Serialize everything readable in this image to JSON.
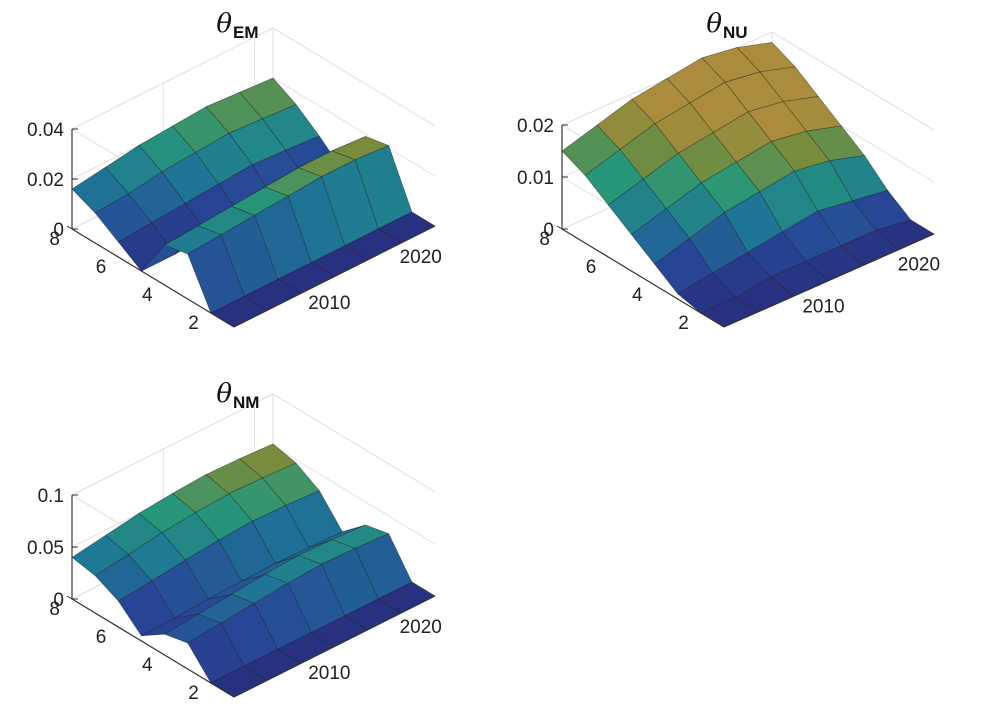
{
  "chart_data": [
    {
      "type": "surface",
      "title_symbol": "θ",
      "title_subscript": "EM",
      "zticks": [
        "0",
        "0.02",
        "0.04"
      ],
      "yticks": [
        "8",
        "6",
        "4",
        "2"
      ],
      "xticks": [
        "2010",
        "2020"
      ],
      "zlim": [
        0,
        0.04
      ],
      "ylim": [
        1,
        8
      ],
      "xlim": [
        2000,
        2022
      ],
      "grid": true,
      "rows": [
        {
          "maturity": 8,
          "values": [
            0.016,
            0.018,
            0.02,
            0.021,
            0.022,
            0.021,
            0.02
          ]
        },
        {
          "maturity": 7,
          "values": [
            0.012,
            0.013,
            0.015,
            0.016,
            0.017,
            0.016,
            0.015
          ]
        },
        {
          "maturity": 6,
          "values": [
            0.006,
            0.007,
            0.008,
            0.009,
            0.01,
            0.009,
            0.008
          ]
        },
        {
          "maturity": 5,
          "values": [
            0.0,
            0.0,
            0.001,
            0.001,
            0.001,
            0.001,
            0.0
          ]
        },
        {
          "maturity": 4,
          "values": [
            0.016,
            0.017,
            0.018,
            0.019,
            0.02,
            0.02,
            0.019
          ]
        },
        {
          "maturity": 3,
          "values": [
            0.018,
            0.019,
            0.02,
            0.021,
            0.022,
            0.022,
            0.021
          ]
        },
        {
          "maturity": 2,
          "values": [
            0.0,
            0.0,
            0.0,
            0.0,
            0.0,
            0.0,
            0.0
          ]
        },
        {
          "maturity": 1,
          "values": [
            0.0,
            0.0,
            0.0,
            0.0,
            0.0,
            0.0,
            0.0
          ]
        }
      ]
    },
    {
      "type": "surface",
      "title_symbol": "θ",
      "title_subscript": "NU",
      "zticks": [
        "0",
        "0.01",
        "0.02"
      ],
      "yticks": [
        "8",
        "6",
        "4",
        "2"
      ],
      "xticks": [
        "2010",
        "2020"
      ],
      "zlim": [
        0,
        0.02
      ],
      "ylim": [
        1,
        8
      ],
      "xlim": [
        2000,
        2022
      ],
      "grid": true,
      "rows": [
        {
          "maturity": 8,
          "values": [
            0.015,
            0.017,
            0.019,
            0.02,
            0.021,
            0.02,
            0.018
          ]
        },
        {
          "maturity": 7,
          "values": [
            0.013,
            0.015,
            0.017,
            0.018,
            0.019,
            0.018,
            0.016
          ]
        },
        {
          "maturity": 6,
          "values": [
            0.01,
            0.012,
            0.014,
            0.015,
            0.016,
            0.015,
            0.013
          ]
        },
        {
          "maturity": 5,
          "values": [
            0.007,
            0.009,
            0.011,
            0.012,
            0.013,
            0.012,
            0.01
          ]
        },
        {
          "maturity": 4,
          "values": [
            0.004,
            0.006,
            0.008,
            0.009,
            0.01,
            0.009,
            0.007
          ]
        },
        {
          "maturity": 3,
          "values": [
            0.001,
            0.002,
            0.003,
            0.004,
            0.005,
            0.004,
            0.003
          ]
        },
        {
          "maturity": 2,
          "values": [
            0.0,
            0.0,
            0.001,
            0.001,
            0.001,
            0.001,
            0.0
          ]
        },
        {
          "maturity": 1,
          "values": [
            0.0,
            0.0,
            0.0,
            0.0,
            0.0,
            0.0,
            0.0
          ]
        }
      ]
    },
    {
      "type": "surface",
      "title_symbol": "θ",
      "title_subscript": "NM",
      "zticks": [
        "0",
        "0.05",
        "0.1"
      ],
      "yticks": [
        "8",
        "6",
        "4",
        "2"
      ],
      "xticks": [
        "2010",
        "2020"
      ],
      "zlim": [
        0,
        0.1
      ],
      "ylim": [
        1,
        8
      ],
      "xlim": [
        2000,
        2022
      ],
      "grid": true,
      "rows": [
        {
          "maturity": 8,
          "values": [
            0.04,
            0.045,
            0.05,
            0.053,
            0.055,
            0.054,
            0.052
          ]
        },
        {
          "maturity": 7,
          "values": [
            0.036,
            0.04,
            0.045,
            0.048,
            0.05,
            0.049,
            0.047
          ]
        },
        {
          "maturity": 6,
          "values": [
            0.025,
            0.028,
            0.032,
            0.035,
            0.037,
            0.036,
            0.034
          ]
        },
        {
          "maturity": 5,
          "values": [
            0.005,
            0.006,
            0.008,
            0.009,
            0.01,
            0.009,
            0.008
          ]
        },
        {
          "maturity": 4,
          "values": [
            0.02,
            0.023,
            0.026,
            0.029,
            0.031,
            0.03,
            0.028
          ]
        },
        {
          "maturity": 3,
          "values": [
            0.025,
            0.028,
            0.031,
            0.034,
            0.036,
            0.035,
            0.033
          ]
        },
        {
          "maturity": 2,
          "values": [
            0.0,
            0.0,
            0.0,
            0.0,
            0.0,
            0.0,
            0.0
          ]
        },
        {
          "maturity": 1,
          "values": [
            0.0,
            0.0,
            0.0,
            0.0,
            0.0,
            0.0,
            0.0
          ]
        }
      ]
    }
  ]
}
